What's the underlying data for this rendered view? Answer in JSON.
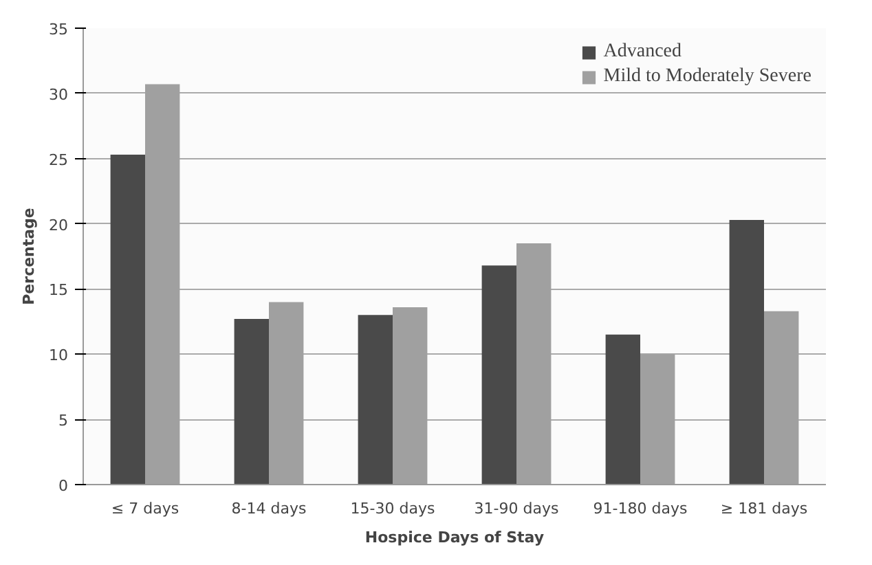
{
  "chart_data": {
    "type": "bar",
    "xlabel": "Hospice Days of Stay",
    "ylabel": "Percentage",
    "categories": [
      "≤ 7 days",
      "8-14 days",
      "15-30 days",
      "31-90 days",
      "91-180 days",
      "≥ 181 days"
    ],
    "series": [
      {
        "name": "Advanced",
        "color": "#4a4a4a",
        "values": [
          25.3,
          12.7,
          13.0,
          16.8,
          11.5,
          20.3
        ]
      },
      {
        "name": "Mild to Moderately Severe",
        "color": "#a0a0a0",
        "values": [
          30.7,
          14.0,
          13.6,
          18.5,
          10.0,
          13.3
        ]
      }
    ],
    "ylim": [
      0,
      35
    ],
    "yticks": [
      0,
      5,
      10,
      15,
      20,
      25,
      30,
      35
    ],
    "grid": "y",
    "legend": "top right"
  }
}
